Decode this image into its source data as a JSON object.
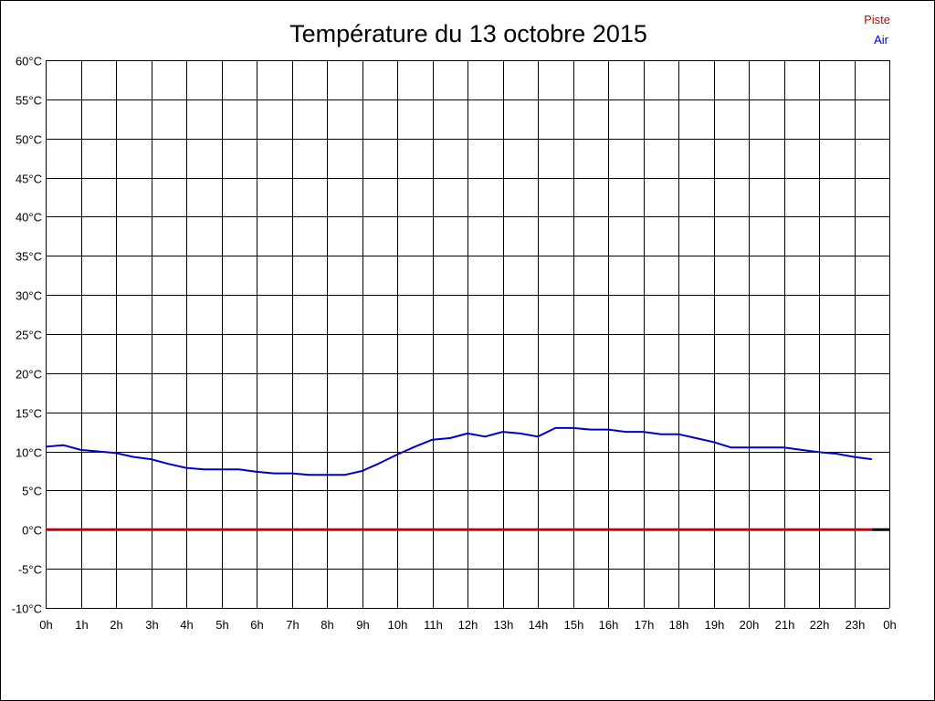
{
  "chart_data": {
    "type": "line",
    "title": "Température du 13 octobre 2015",
    "xlabel": "",
    "ylabel": "",
    "xlim": [
      0,
      24
    ],
    "ylim": [
      -10,
      60
    ],
    "grid": true,
    "legend_position": "top-right",
    "x_tick_labels": [
      "0h",
      "1h",
      "2h",
      "3h",
      "4h",
      "5h",
      "6h",
      "7h",
      "8h",
      "9h",
      "10h",
      "11h",
      "12h",
      "13h",
      "14h",
      "15h",
      "16h",
      "17h",
      "18h",
      "19h",
      "20h",
      "21h",
      "22h",
      "23h",
      "0h"
    ],
    "y_tick_labels": [
      "60°C",
      "55°C",
      "50°C",
      "45°C",
      "40°C",
      "35°C",
      "30°C",
      "25°C",
      "20°C",
      "15°C",
      "10°C",
      "5°C",
      "0°C",
      "-5°C",
      "-10°C"
    ],
    "y_tick_values": [
      60,
      55,
      50,
      45,
      40,
      35,
      30,
      25,
      20,
      15,
      10,
      5,
      0,
      -5,
      -10
    ],
    "series": [
      {
        "name": "Piste",
        "color": "#cc0000",
        "x": [
          0,
          23.5
        ],
        "y": [
          0,
          0
        ]
      },
      {
        "name": "Air",
        "color": "#0000cc",
        "x": [
          0,
          0.5,
          1,
          1.5,
          2,
          2.5,
          3,
          3.5,
          4,
          4.5,
          5,
          5.5,
          6,
          6.5,
          7,
          7.5,
          8,
          8.5,
          9,
          9.5,
          10,
          10.5,
          11,
          11.5,
          12,
          12.5,
          13,
          13.5,
          14,
          14.5,
          15,
          15.5,
          16,
          16.5,
          17,
          17.5,
          18,
          18.5,
          19,
          19.5,
          20,
          20.5,
          21,
          21.5,
          22,
          22.5,
          23,
          23.5
        ],
        "y": [
          10.6,
          10.8,
          10.2,
          10.0,
          9.8,
          9.3,
          9.0,
          8.4,
          7.9,
          7.7,
          7.7,
          7.7,
          7.4,
          7.2,
          7.2,
          7.0,
          7.0,
          7.0,
          7.5,
          8.5,
          9.6,
          10.6,
          11.5,
          11.7,
          12.3,
          11.9,
          12.5,
          12.3,
          11.9,
          13.0,
          13.0,
          12.8,
          12.8,
          12.5,
          12.5,
          12.2,
          12.2,
          11.7,
          11.2,
          10.5,
          10.5,
          10.5,
          10.5,
          10.2,
          9.9,
          9.7,
          9.3,
          9.0
        ]
      }
    ],
    "zero_segment_color": "#000000"
  }
}
